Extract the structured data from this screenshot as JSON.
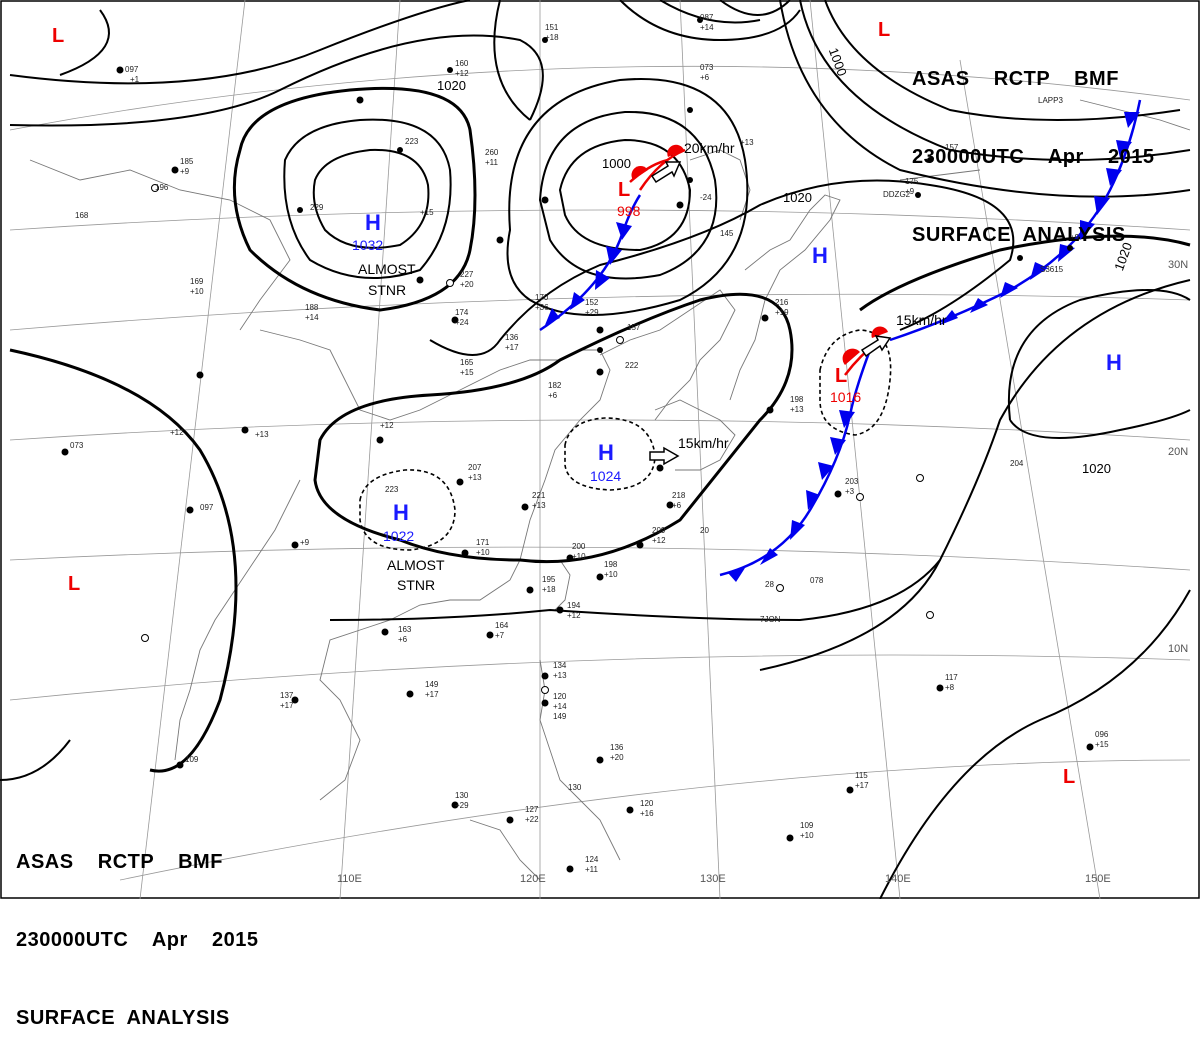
{
  "header": {
    "line1": "ASAS    RCTP    BMF",
    "line2": "230000UTC    Apr    2015",
    "line3": "SURFACE  ANALYSIS"
  },
  "longitude_labels": [
    "110E",
    "120E",
    "130E",
    "140E",
    "150E"
  ],
  "latitude_labels": [
    "30N",
    "20N",
    "10N"
  ],
  "isobar_labels": [
    "1020",
    "1000",
    "1020",
    "1020",
    "1020",
    "1000"
  ],
  "pressure_centers": [
    {
      "type": "H",
      "value": "1032"
    },
    {
      "type": "H",
      "value": "1024"
    },
    {
      "type": "H",
      "value": "1022"
    },
    {
      "type": "H",
      "value": ""
    },
    {
      "type": "H",
      "value": ""
    },
    {
      "type": "L",
      "value": "998"
    },
    {
      "type": "L",
      "value": "1016"
    },
    {
      "type": "L",
      "value": ""
    },
    {
      "type": "L",
      "value": ""
    },
    {
      "type": "L",
      "value": ""
    },
    {
      "type": "L",
      "value": ""
    }
  ],
  "motion_labels": [
    "20km/hr",
    "15km/hr",
    "15km/hr"
  ],
  "stationary_notes": [
    {
      "line1": "ALMOST",
      "line2": "STNR"
    },
    {
      "line1": "ALMOST",
      "line2": "STNR"
    }
  ],
  "ship_codes": [
    "DDZG2",
    "S3615",
    "7JON",
    "LAPP3"
  ],
  "colors": {
    "high": "#1a1aff",
    "low": "#ee0000",
    "isobar": "#000000",
    "grid": "#888888",
    "front_cold": "#0000ee",
    "front_warm": "#ee0000"
  }
}
